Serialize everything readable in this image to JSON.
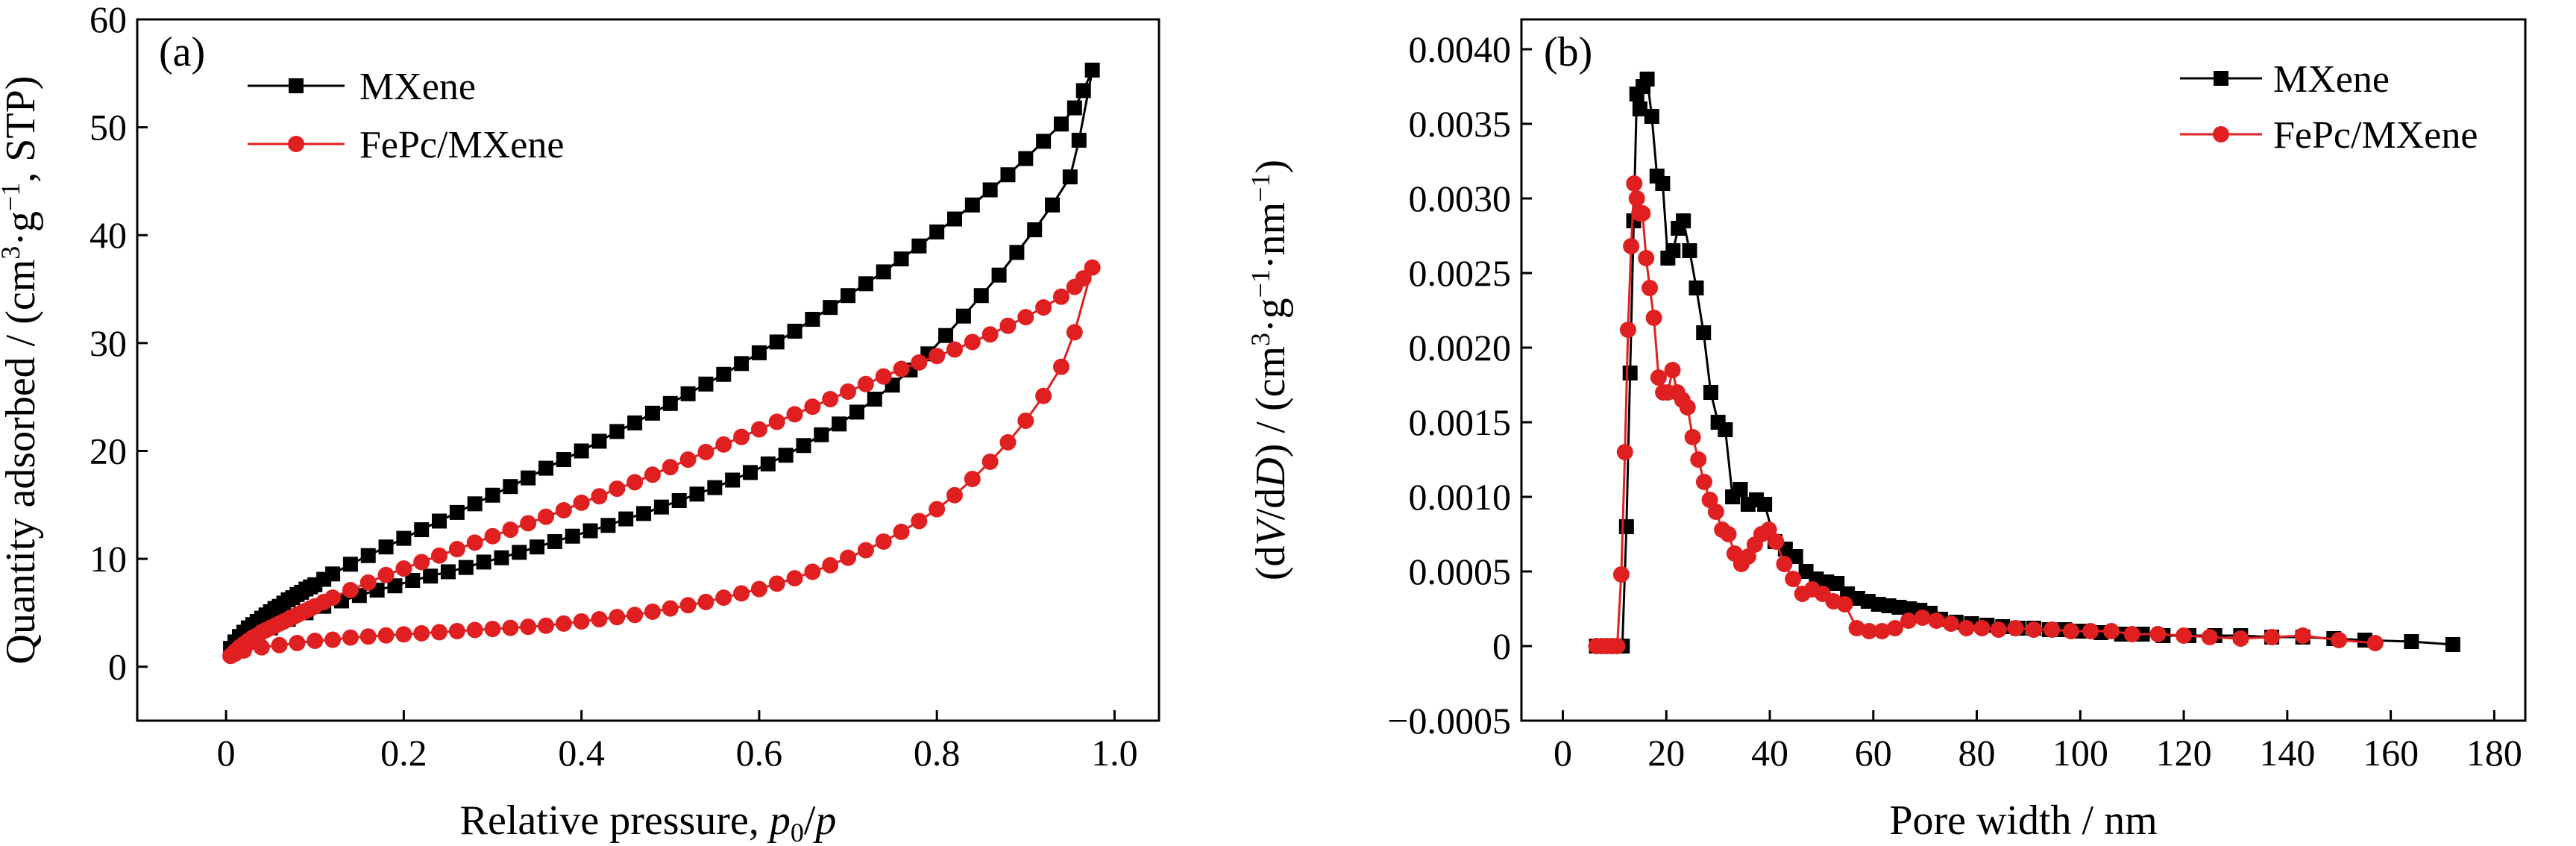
{
  "colors": {
    "MXene": "#000000",
    "FePc/MXene": "#e02020"
  },
  "chart_data": [
    {
      "panel": "(a)",
      "type": "line",
      "xlabel": "Relative pressure, ",
      "xlabel_sub": "0",
      "ylabel": "Quantity adsorbed / (cm",
      "ylabel_sup1": "3",
      "ylabel_mid": "·g",
      "ylabel_sup2": "−1",
      "ylabel_end": ", STP)",
      "xlim": [
        -0.1,
        1.05
      ],
      "ylim": [
        -5,
        60
      ],
      "xticks": [
        0,
        0.2,
        0.4,
        0.6,
        0.8,
        1.0
      ],
      "xtick_labels": [
        "0",
        "0.2",
        "0.4",
        "0.6",
        "0.8",
        "1.0"
      ],
      "yticks": [
        0,
        10,
        20,
        30,
        40,
        50,
        60
      ],
      "ytick_labels": [
        "0",
        "10",
        "20",
        "30",
        "40",
        "50",
        "60"
      ],
      "legend_position": "top-left",
      "series": [
        {
          "name": "MXene",
          "marker": "square",
          "x": [
            0.005,
            0.01,
            0.015,
            0.02,
            0.025,
            0.03,
            0.035,
            0.04,
            0.045,
            0.05,
            0.055,
            0.06,
            0.065,
            0.07,
            0.075,
            0.08,
            0.085,
            0.09,
            0.095,
            0.1,
            0.11,
            0.12,
            0.14,
            0.16,
            0.18,
            0.2,
            0.22,
            0.24,
            0.26,
            0.28,
            0.3,
            0.32,
            0.34,
            0.36,
            0.38,
            0.4,
            0.42,
            0.44,
            0.46,
            0.48,
            0.5,
            0.52,
            0.54,
            0.56,
            0.58,
            0.6,
            0.62,
            0.64,
            0.66,
            0.68,
            0.7,
            0.72,
            0.74,
            0.76,
            0.78,
            0.8,
            0.82,
            0.84,
            0.86,
            0.88,
            0.9,
            0.92,
            0.94,
            0.955,
            0.965,
            0.975,
            0.96,
            0.95,
            0.93,
            0.91,
            0.89,
            0.87,
            0.85,
            0.83,
            0.81,
            0.79,
            0.77,
            0.75,
            0.73,
            0.71,
            0.69,
            0.67,
            0.65,
            0.63,
            0.61,
            0.59,
            0.57,
            0.55,
            0.53,
            0.51,
            0.49,
            0.47,
            0.45,
            0.43,
            0.41,
            0.39,
            0.37,
            0.35,
            0.33,
            0.31,
            0.29,
            0.27,
            0.25,
            0.23,
            0.21,
            0.19,
            0.17,
            0.15,
            0.13,
            0.11,
            0.09,
            0.07,
            0.05,
            0.03,
            0.01
          ],
          "y": [
            1.7,
            2.3,
            2.8,
            3.2,
            3.6,
            3.9,
            4.2,
            4.5,
            4.8,
            5.1,
            5.4,
            5.6,
            5.9,
            6.2,
            6.4,
            6.7,
            6.9,
            7.2,
            7.4,
            7.6,
            8.1,
            8.6,
            9.5,
            10.3,
            11.1,
            11.9,
            12.7,
            13.5,
            14.3,
            15.1,
            15.9,
            16.7,
            17.5,
            18.4,
            19.2,
            20.0,
            20.9,
            21.8,
            22.6,
            23.5,
            24.4,
            25.3,
            26.2,
            27.1,
            28.1,
            29.1,
            30.1,
            31.1,
            32.2,
            33.3,
            34.4,
            35.5,
            36.6,
            37.8,
            39.0,
            40.3,
            41.5,
            42.8,
            44.2,
            45.6,
            47.1,
            48.7,
            50.3,
            51.8,
            53.4,
            55.3,
            48.8,
            45.4,
            42.8,
            40.5,
            38.4,
            36.3,
            34.4,
            32.5,
            30.7,
            29.0,
            27.5,
            26.1,
            24.8,
            23.6,
            22.5,
            21.5,
            20.5,
            19.6,
            18.8,
            18.0,
            17.3,
            16.6,
            16.0,
            15.4,
            14.8,
            14.2,
            13.7,
            13.1,
            12.6,
            12.1,
            11.6,
            11.1,
            10.6,
            10.1,
            9.7,
            9.2,
            8.8,
            8.4,
            8.0,
            7.5,
            7.1,
            6.6,
            6.1,
            5.6,
            5.0,
            4.4,
            3.6,
            2.7,
            1.6
          ]
        },
        {
          "name": "FePc/MXene",
          "marker": "circle",
          "x": [
            0.005,
            0.01,
            0.015,
            0.02,
            0.025,
            0.03,
            0.035,
            0.04,
            0.045,
            0.05,
            0.055,
            0.06,
            0.065,
            0.07,
            0.075,
            0.08,
            0.085,
            0.09,
            0.095,
            0.1,
            0.11,
            0.12,
            0.14,
            0.16,
            0.18,
            0.2,
            0.22,
            0.24,
            0.26,
            0.28,
            0.3,
            0.32,
            0.34,
            0.36,
            0.38,
            0.4,
            0.42,
            0.44,
            0.46,
            0.48,
            0.5,
            0.52,
            0.54,
            0.56,
            0.58,
            0.6,
            0.62,
            0.64,
            0.66,
            0.68,
            0.7,
            0.72,
            0.74,
            0.76,
            0.78,
            0.8,
            0.82,
            0.84,
            0.86,
            0.88,
            0.9,
            0.92,
            0.94,
            0.955,
            0.965,
            0.975,
            0.955,
            0.94,
            0.92,
            0.9,
            0.88,
            0.86,
            0.84,
            0.82,
            0.8,
            0.78,
            0.76,
            0.74,
            0.72,
            0.7,
            0.68,
            0.66,
            0.64,
            0.62,
            0.6,
            0.58,
            0.56,
            0.54,
            0.52,
            0.5,
            0.48,
            0.46,
            0.44,
            0.42,
            0.4,
            0.38,
            0.36,
            0.34,
            0.32,
            0.3,
            0.28,
            0.26,
            0.24,
            0.22,
            0.2,
            0.18,
            0.16,
            0.14,
            0.12,
            0.1,
            0.08,
            0.06,
            0.04,
            0.02,
            0.01
          ],
          "y": [
            1.0,
            1.4,
            1.8,
            2.1,
            2.4,
            2.7,
            2.9,
            3.2,
            3.4,
            3.6,
            3.8,
            4.0,
            4.2,
            4.4,
            4.6,
            4.8,
            5.0,
            5.2,
            5.4,
            5.6,
            6.0,
            6.4,
            7.1,
            7.8,
            8.5,
            9.1,
            9.7,
            10.3,
            10.9,
            11.5,
            12.1,
            12.7,
            13.3,
            13.9,
            14.5,
            15.2,
            15.8,
            16.5,
            17.1,
            17.8,
            18.5,
            19.2,
            19.9,
            20.6,
            21.3,
            22.0,
            22.7,
            23.4,
            24.1,
            24.8,
            25.5,
            26.2,
            26.9,
            27.6,
            28.2,
            28.8,
            29.4,
            30.1,
            30.8,
            31.6,
            32.4,
            33.3,
            34.3,
            35.2,
            36.0,
            37.0,
            31.0,
            27.8,
            25.1,
            22.8,
            20.8,
            19.0,
            17.4,
            15.9,
            14.6,
            13.5,
            12.5,
            11.6,
            10.8,
            10.1,
            9.4,
            8.8,
            8.2,
            7.7,
            7.2,
            6.8,
            6.4,
            6.0,
            5.7,
            5.4,
            5.1,
            4.8,
            4.6,
            4.4,
            4.2,
            4.0,
            3.8,
            3.7,
            3.6,
            3.5,
            3.4,
            3.3,
            3.2,
            3.1,
            3.0,
            2.9,
            2.8,
            2.7,
            2.5,
            2.4,
            2.2,
            2.0,
            1.8,
            1.5,
            1.2
          ]
        }
      ]
    },
    {
      "panel": "(b)",
      "type": "line",
      "xlabel": "Pore width / nm",
      "ylabel_pre": "(d",
      "ylabel_V": "V",
      "ylabel_mid": "/d",
      "ylabel_D": "D",
      "ylabel_post": ") / (cm",
      "ylabel_sup1": "3",
      "ylabel_g": "·g",
      "ylabel_sup2": "−1",
      "ylabel_nm": "·nm",
      "ylabel_sup3": "−1",
      "ylabel_end": ")",
      "xlim": [
        -8,
        186
      ],
      "ylim": [
        -0.0005,
        0.0042
      ],
      "xticks": [
        0,
        20,
        40,
        60,
        80,
        100,
        120,
        140,
        160,
        180
      ],
      "xtick_labels": [
        "0",
        "20",
        "40",
        "60",
        "80",
        "100",
        "120",
        "140",
        "160",
        "180"
      ],
      "yticks": [
        -0.0005,
        0,
        0.0005,
        0.001,
        0.0015,
        0.002,
        0.0025,
        0.003,
        0.0035,
        0.004
      ],
      "ytick_labels": [
        "−0.0005",
        "0",
        "0.0005",
        "0.0010",
        "0.0015",
        "0.0020",
        "0.0025",
        "0.0030",
        "0.0035",
        "0.0040"
      ],
      "legend_position": "top-right",
      "series": [
        {
          "name": "MXene",
          "marker": "square",
          "x": [
            6.5,
            7.5,
            8.5,
            9.5,
            10.5,
            11.5,
            12.3,
            13.0,
            13.7,
            14.3,
            14.9,
            15.5,
            16.3,
            17.2,
            18.2,
            19.3,
            20.3,
            21.3,
            22.3,
            23.3,
            24.5,
            25.8,
            27.2,
            28.6,
            30.0,
            31.4,
            32.8,
            34.3,
            35.8,
            37.4,
            39.0,
            41.0,
            43.0,
            45.0,
            47.0,
            49.0,
            51.0,
            53.0,
            55.0,
            57.0,
            59.0,
            61.0,
            63.0,
            65.0,
            67.0,
            69.0,
            71.0,
            73.0,
            76.0,
            79.0,
            82.0,
            85.0,
            88.0,
            91.0,
            94.0,
            97.0,
            100.0,
            104.0,
            108.0,
            112.0,
            116.0,
            121.0,
            126.0,
            131.0,
            137.0,
            143.0,
            149.0,
            155.0,
            164.0,
            172.0
          ],
          "y": [
            0,
            0,
            0,
            0,
            0,
            0,
            0.0008,
            0.00183,
            0.00285,
            0.0037,
            0.0036,
            0.00375,
            0.0038,
            0.00355,
            0.00315,
            0.0031,
            0.0026,
            0.00265,
            0.0028,
            0.00285,
            0.00265,
            0.0024,
            0.0021,
            0.0017,
            0.0015,
            0.00145,
            0.001,
            0.00105,
            0.00095,
            0.00098,
            0.00095,
            0.0007,
            0.00065,
            0.0006,
            0.0005,
            0.00045,
            0.00043,
            0.00042,
            0.00035,
            0.00032,
            0.0003,
            0.00028,
            0.00027,
            0.00026,
            0.00025,
            0.00024,
            0.00022,
            0.00018,
            0.00016,
            0.00015,
            0.00014,
            0.00013,
            0.00012,
            0.00012,
            0.00011,
            0.00011,
            0.0001,
            9e-05,
            8e-05,
            8e-05,
            7e-05,
            7e-05,
            7e-05,
            7e-05,
            6e-05,
            6e-05,
            5e-05,
            4e-05,
            3e-05,
            1e-05
          ]
        },
        {
          "name": "FePc/MXene",
          "marker": "circle",
          "x": [
            6.5,
            7.5,
            8.5,
            9.5,
            10.5,
            11.3,
            12.0,
            12.6,
            13.2,
            13.8,
            14.3,
            14.8,
            15.4,
            16.1,
            16.8,
            17.6,
            18.5,
            19.4,
            20.3,
            21.2,
            22.1,
            23.1,
            24.1,
            25.1,
            26.2,
            27.3,
            28.4,
            29.6,
            30.8,
            32.0,
            33.2,
            34.5,
            35.8,
            37.1,
            38.4,
            39.8,
            41.2,
            42.8,
            44.5,
            46.3,
            48.2,
            50.2,
            52.3,
            54.5,
            56.8,
            59.2,
            61.7,
            64.2,
            66.8,
            69.5,
            72.2,
            75.0,
            78.0,
            81.0,
            84.2,
            87.5,
            91.0,
            94.5,
            98.2,
            102.0,
            106.0,
            110.0,
            115.0,
            120.0,
            125.0,
            131.0,
            137.0,
            143.0,
            150.0,
            157.0
          ],
          "y": [
            0,
            0,
            0,
            0,
            0,
            0.00048,
            0.0013,
            0.00212,
            0.00268,
            0.0031,
            0.003,
            0.0029,
            0.0029,
            0.0026,
            0.0024,
            0.0022,
            0.0018,
            0.0017,
            0.0017,
            0.00185,
            0.0017,
            0.00165,
            0.0016,
            0.0014,
            0.00125,
            0.0011,
            0.00098,
            0.0009,
            0.00078,
            0.00075,
            0.00062,
            0.00055,
            0.0006,
            0.00068,
            0.00075,
            0.00078,
            0.0007,
            0.00055,
            0.00045,
            0.00035,
            0.00038,
            0.00035,
            0.0003,
            0.00028,
            0.00012,
            0.0001,
            0.0001,
            0.00012,
            0.00017,
            0.00019,
            0.00017,
            0.00015,
            0.00012,
            0.00012,
            0.00011,
            0.00012,
            0.00011,
            0.00011,
            0.0001,
            0.0001,
            0.0001,
            8e-05,
            8e-05,
            7e-05,
            6e-05,
            5e-05,
            6e-05,
            7e-05,
            4e-05,
            2e-05
          ]
        }
      ]
    }
  ]
}
